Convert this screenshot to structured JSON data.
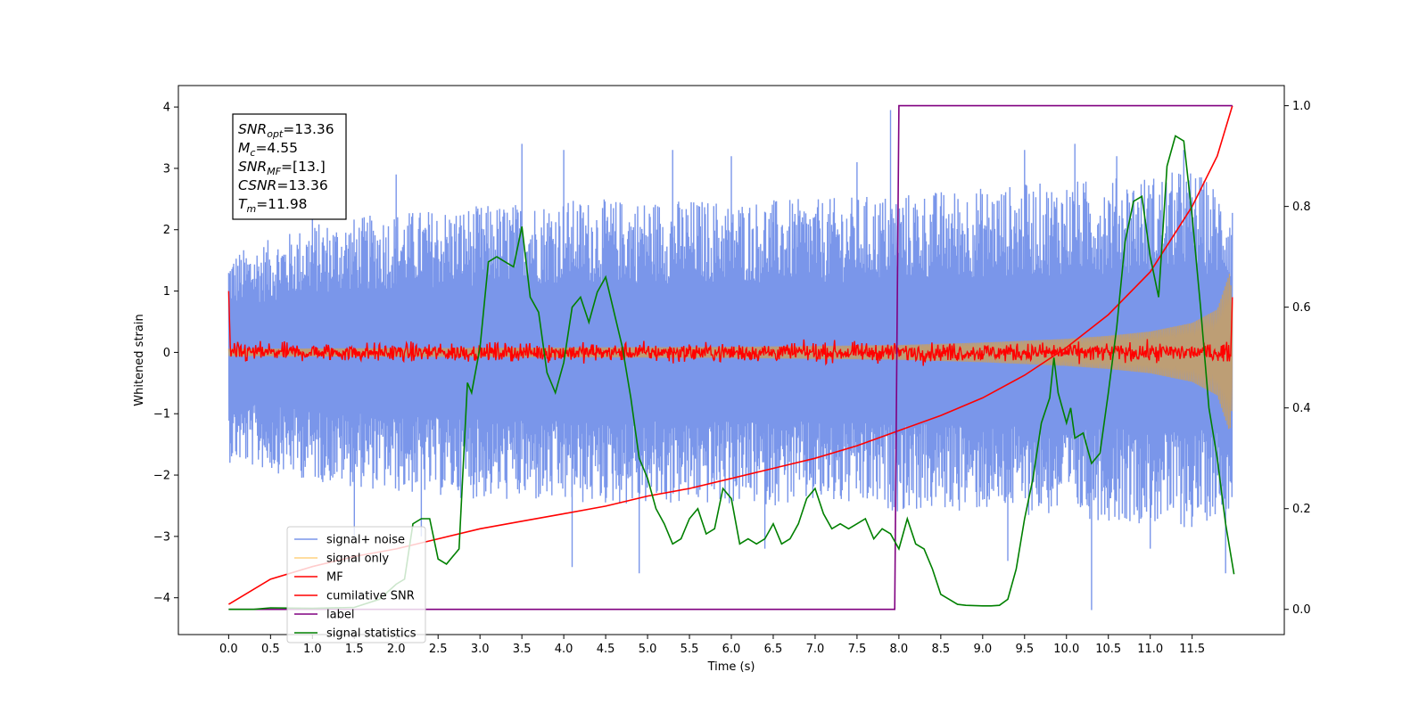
{
  "chart_data": {
    "type": "line",
    "xlabel": "Time (s)",
    "ylabel": "Whitened strain",
    "xlim": [
      -0.6,
      12.6
    ],
    "ylim": [
      -4.6,
      4.35
    ],
    "y2lim": [
      -0.05,
      1.04
    ],
    "grid": false,
    "legend_placement": "lower-left",
    "x_ticks": [
      "0.0",
      "0.5",
      "1.0",
      "1.5",
      "2.0",
      "2.5",
      "3.0",
      "3.5",
      "4.0",
      "4.5",
      "5.0",
      "5.5",
      "6.0",
      "6.5",
      "7.0",
      "7.5",
      "8.0",
      "8.5",
      "9.0",
      "9.5",
      "10.0",
      "10.5",
      "11.0",
      "11.5"
    ],
    "y_ticks": [
      "4",
      "3",
      "2",
      "1",
      "0",
      "−1",
      "−2",
      "−3",
      "−4"
    ],
    "y2_ticks": [
      "1.0",
      "0.8",
      "0.6",
      "0.4",
      "0.2",
      "0.0"
    ],
    "annotation": {
      "snr_opt": "=13.36",
      "mc": "=4.55",
      "snr_mf": "=[13.]",
      "csnr": "=13.36",
      "tm": "=11.98",
      "labels": {
        "snr": "SNR",
        "opt": "opt",
        "m": "M",
        "c": "c",
        "mf": "MF",
        "csnr": "CSNR",
        "t": "T",
        "tm_sub": "m"
      }
    },
    "series": [
      {
        "name": "signal+ noise",
        "color": "#4169e1",
        "axis": "left",
        "note": "dense whitened noise, roughly within -2.5..+2.5 with spikes to about ±3.5",
        "envelope_upper": [
          [
            0,
            1.6
          ],
          [
            1,
            2.1
          ],
          [
            2,
            2.3
          ],
          [
            3,
            2.4
          ],
          [
            4,
            2.5
          ],
          [
            5,
            2.5
          ],
          [
            6,
            2.5
          ],
          [
            7,
            2.5
          ],
          [
            8,
            2.6
          ],
          [
            9,
            2.7
          ],
          [
            10,
            2.8
          ],
          [
            11,
            2.9
          ],
          [
            11.5,
            3.0
          ],
          [
            12,
            2.5
          ]
        ],
        "envelope_lower": [
          [
            0,
            -1.8
          ],
          [
            1,
            -2.1
          ],
          [
            2,
            -2.3
          ],
          [
            3,
            -2.4
          ],
          [
            4,
            -2.5
          ],
          [
            5,
            -2.5
          ],
          [
            6,
            -2.5
          ],
          [
            7,
            -2.5
          ],
          [
            8,
            -2.6
          ],
          [
            9,
            -2.6
          ],
          [
            10,
            -2.7
          ],
          [
            11,
            -2.8
          ],
          [
            11.5,
            -2.9
          ],
          [
            12,
            -2.5
          ]
        ],
        "spikes": [
          [
            1.0,
            2.9
          ],
          [
            2.0,
            2.9
          ],
          [
            3.5,
            3.4
          ],
          [
            4.0,
            3.3
          ],
          [
            5.3,
            3.3
          ],
          [
            6.0,
            3.2
          ],
          [
            7.5,
            3.1
          ],
          [
            7.9,
            3.95
          ],
          [
            9.5,
            3.3
          ],
          [
            10.1,
            3.4
          ],
          [
            10.6,
            3.2
          ],
          [
            11.4,
            3.3
          ],
          [
            1.5,
            -3.0
          ],
          [
            2.3,
            -3.0
          ],
          [
            4.1,
            -3.5
          ],
          [
            4.9,
            -3.6
          ],
          [
            6.4,
            -3.2
          ],
          [
            9.3,
            -3.4
          ],
          [
            10.3,
            -4.2
          ],
          [
            11.0,
            -3.2
          ],
          [
            11.9,
            -3.6
          ]
        ]
      },
      {
        "name": "signal only",
        "color": "#ffa500",
        "axis": "left",
        "note": "chirp waveform growing in amplitude toward merger",
        "amplitude": [
          [
            0,
            0.06
          ],
          [
            2,
            0.07
          ],
          [
            4,
            0.08
          ],
          [
            6,
            0.09
          ],
          [
            8,
            0.12
          ],
          [
            9,
            0.16
          ],
          [
            10,
            0.22
          ],
          [
            10.5,
            0.27
          ],
          [
            11,
            0.34
          ],
          [
            11.5,
            0.48
          ],
          [
            11.8,
            0.7
          ],
          [
            11.95,
            1.3
          ],
          [
            12,
            0.5
          ]
        ]
      },
      {
        "name": "MF",
        "color": "#ff0000",
        "axis": "left",
        "note": "matched-filter output noise around 0 (about ±0.2), spike near t=12",
        "points": [
          [
            0,
            1.0
          ],
          [
            0.05,
            0.1
          ],
          [
            12,
            0.0
          ],
          [
            11.98,
            0.9
          ]
        ]
      },
      {
        "name": "cumilative SNR",
        "color": "#ff0000",
        "axis": "right",
        "points": [
          [
            0.0,
            0.01
          ],
          [
            0.5,
            0.06
          ],
          [
            1.0,
            0.085
          ],
          [
            1.5,
            0.105
          ],
          [
            2.0,
            0.12
          ],
          [
            2.5,
            0.14
          ],
          [
            3.0,
            0.16
          ],
          [
            3.5,
            0.175
          ],
          [
            4.0,
            0.19
          ],
          [
            4.5,
            0.205
          ],
          [
            5.0,
            0.225
          ],
          [
            5.5,
            0.24
          ],
          [
            6.0,
            0.26
          ],
          [
            6.5,
            0.28
          ],
          [
            7.0,
            0.3
          ],
          [
            7.5,
            0.325
          ],
          [
            8.0,
            0.355
          ],
          [
            8.5,
            0.385
          ],
          [
            9.0,
            0.42
          ],
          [
            9.5,
            0.465
          ],
          [
            10.0,
            0.52
          ],
          [
            10.5,
            0.585
          ],
          [
            11.0,
            0.67
          ],
          [
            11.5,
            0.8
          ],
          [
            11.8,
            0.9
          ],
          [
            11.98,
            1.0
          ]
        ]
      },
      {
        "name": "label",
        "color": "#800080",
        "axis": "right",
        "points": [
          [
            0.0,
            0.0
          ],
          [
            7.95,
            0.0
          ],
          [
            8.0,
            1.0
          ],
          [
            11.98,
            1.0
          ]
        ]
      },
      {
        "name": "signal statistics",
        "color": "#008000",
        "axis": "right",
        "points": [
          [
            0.0,
            0.0
          ],
          [
            0.3,
            0.0
          ],
          [
            0.5,
            0.003
          ],
          [
            1.0,
            0.002
          ],
          [
            1.5,
            0.004
          ],
          [
            1.8,
            0.02
          ],
          [
            2.0,
            0.05
          ],
          [
            2.1,
            0.06
          ],
          [
            2.2,
            0.17
          ],
          [
            2.3,
            0.18
          ],
          [
            2.4,
            0.18
          ],
          [
            2.5,
            0.1
          ],
          [
            2.6,
            0.09
          ],
          [
            2.7,
            0.11
          ],
          [
            2.75,
            0.12
          ],
          [
            2.85,
            0.45
          ],
          [
            2.9,
            0.43
          ],
          [
            3.0,
            0.52
          ],
          [
            3.1,
            0.69
          ],
          [
            3.2,
            0.7
          ],
          [
            3.3,
            0.69
          ],
          [
            3.4,
            0.68
          ],
          [
            3.5,
            0.76
          ],
          [
            3.6,
            0.62
          ],
          [
            3.7,
            0.59
          ],
          [
            3.8,
            0.47
          ],
          [
            3.9,
            0.43
          ],
          [
            4.0,
            0.49
          ],
          [
            4.1,
            0.6
          ],
          [
            4.2,
            0.62
          ],
          [
            4.3,
            0.57
          ],
          [
            4.4,
            0.63
          ],
          [
            4.5,
            0.66
          ],
          [
            4.6,
            0.59
          ],
          [
            4.7,
            0.52
          ],
          [
            4.8,
            0.42
          ],
          [
            4.9,
            0.3
          ],
          [
            5.0,
            0.26
          ],
          [
            5.1,
            0.2
          ],
          [
            5.2,
            0.17
          ],
          [
            5.3,
            0.13
          ],
          [
            5.4,
            0.14
          ],
          [
            5.5,
            0.18
          ],
          [
            5.6,
            0.2
          ],
          [
            5.7,
            0.15
          ],
          [
            5.8,
            0.16
          ],
          [
            5.9,
            0.24
          ],
          [
            6.0,
            0.22
          ],
          [
            6.1,
            0.13
          ],
          [
            6.2,
            0.14
          ],
          [
            6.3,
            0.13
          ],
          [
            6.4,
            0.14
          ],
          [
            6.5,
            0.17
          ],
          [
            6.6,
            0.13
          ],
          [
            6.7,
            0.14
          ],
          [
            6.8,
            0.17
          ],
          [
            6.9,
            0.22
          ],
          [
            7.0,
            0.24
          ],
          [
            7.1,
            0.19
          ],
          [
            7.2,
            0.16
          ],
          [
            7.3,
            0.17
          ],
          [
            7.4,
            0.16
          ],
          [
            7.5,
            0.17
          ],
          [
            7.6,
            0.18
          ],
          [
            7.7,
            0.14
          ],
          [
            7.8,
            0.16
          ],
          [
            7.9,
            0.15
          ],
          [
            8.0,
            0.12
          ],
          [
            8.1,
            0.18
          ],
          [
            8.2,
            0.13
          ],
          [
            8.3,
            0.12
          ],
          [
            8.4,
            0.08
          ],
          [
            8.5,
            0.03
          ],
          [
            8.6,
            0.02
          ],
          [
            8.7,
            0.01
          ],
          [
            8.8,
            0.008
          ],
          [
            9.0,
            0.007
          ],
          [
            9.1,
            0.007
          ],
          [
            9.2,
            0.008
          ],
          [
            9.3,
            0.02
          ],
          [
            9.4,
            0.08
          ],
          [
            9.5,
            0.18
          ],
          [
            9.6,
            0.26
          ],
          [
            9.7,
            0.37
          ],
          [
            9.8,
            0.42
          ],
          [
            9.85,
            0.5
          ],
          [
            9.9,
            0.43
          ],
          [
            10.0,
            0.37
          ],
          [
            10.05,
            0.4
          ],
          [
            10.1,
            0.34
          ],
          [
            10.2,
            0.35
          ],
          [
            10.3,
            0.29
          ],
          [
            10.4,
            0.31
          ],
          [
            10.5,
            0.43
          ],
          [
            10.6,
            0.56
          ],
          [
            10.7,
            0.73
          ],
          [
            10.8,
            0.81
          ],
          [
            10.9,
            0.82
          ],
          [
            11.0,
            0.7
          ],
          [
            11.1,
            0.62
          ],
          [
            11.2,
            0.88
          ],
          [
            11.3,
            0.94
          ],
          [
            11.4,
            0.93
          ],
          [
            11.5,
            0.78
          ],
          [
            11.6,
            0.6
          ],
          [
            11.7,
            0.4
          ],
          [
            11.8,
            0.3
          ],
          [
            11.9,
            0.17
          ],
          [
            12.0,
            0.07
          ]
        ]
      }
    ]
  }
}
